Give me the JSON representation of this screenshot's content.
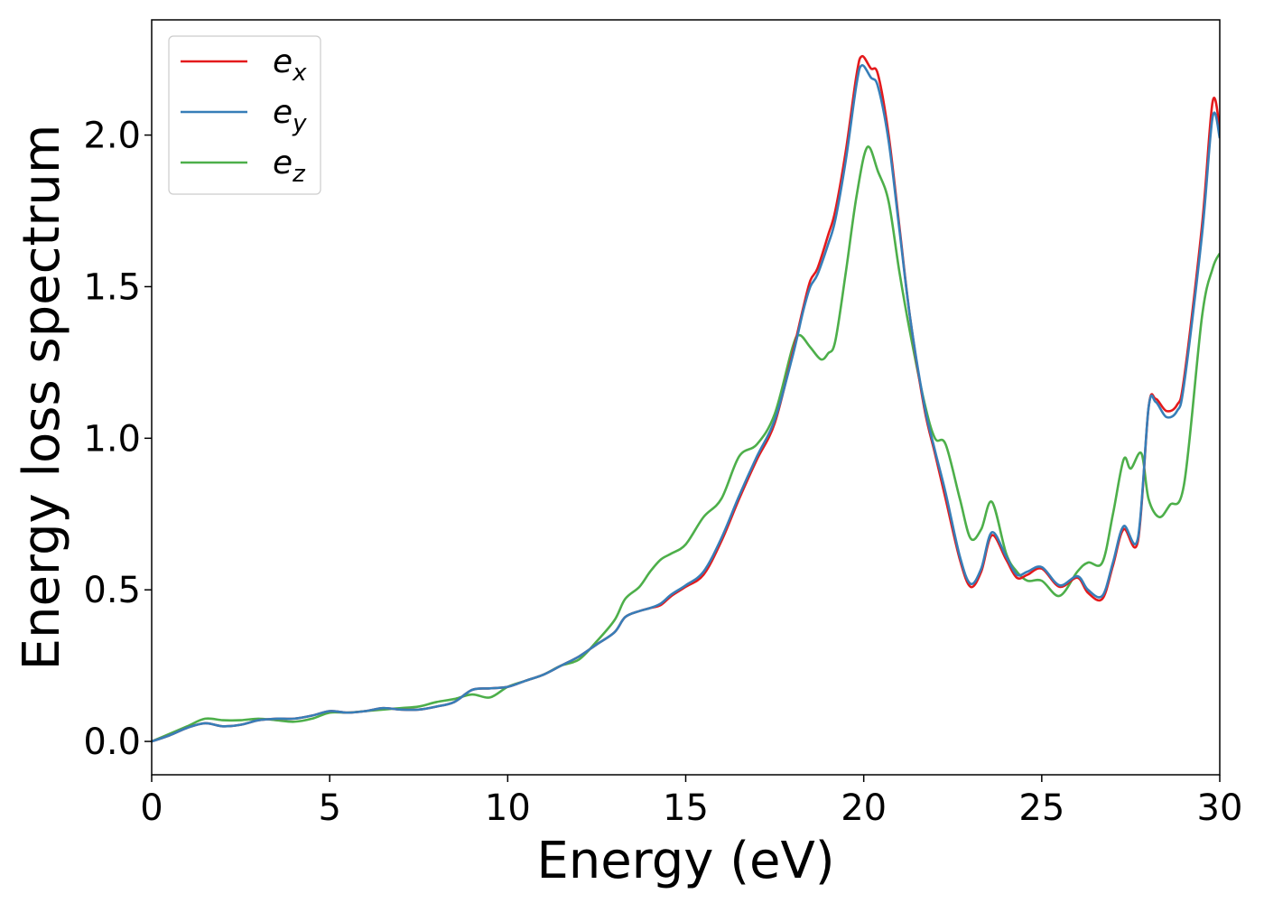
{
  "chart_data": {
    "type": "line",
    "title": "",
    "xlabel": "Energy (eV)",
    "ylabel": "Energy loss spectrum",
    "xlim": [
      0,
      30
    ],
    "ylim": [
      -0.11,
      2.38
    ],
    "xticks": [
      0,
      5,
      10,
      15,
      20,
      25,
      30
    ],
    "xtick_labels": [
      "0",
      "5",
      "10",
      "15",
      "20",
      "25",
      "30"
    ],
    "yticks": [
      0.0,
      0.5,
      1.0,
      1.5,
      2.0
    ],
    "ytick_labels": [
      "0.0",
      "0.5",
      "1.0",
      "1.5",
      "2.0"
    ],
    "grid": false,
    "legend_position": "top-left",
    "colors": [
      "#e41a1c",
      "#377eb8",
      "#4daf4a"
    ],
    "series": [
      {
        "name": "e_x",
        "base": "e",
        "sub": "x",
        "points": [
          [
            0,
            0
          ],
          [
            0.5,
            0.02
          ],
          [
            1,
            0.045
          ],
          [
            1.5,
            0.06
          ],
          [
            2,
            0.05
          ],
          [
            2.5,
            0.055
          ],
          [
            3,
            0.07
          ],
          [
            3.5,
            0.075
          ],
          [
            4,
            0.075
          ],
          [
            4.5,
            0.085
          ],
          [
            5,
            0.1
          ],
          [
            5.5,
            0.095
          ],
          [
            6,
            0.1
          ],
          [
            6.5,
            0.11
          ],
          [
            7,
            0.105
          ],
          [
            7.5,
            0.105
          ],
          [
            8,
            0.115
          ],
          [
            8.5,
            0.13
          ],
          [
            9,
            0.17
          ],
          [
            9.5,
            0.175
          ],
          [
            10,
            0.18
          ],
          [
            10.5,
            0.2
          ],
          [
            11,
            0.22
          ],
          [
            11.5,
            0.25
          ],
          [
            12,
            0.28
          ],
          [
            12.5,
            0.32
          ],
          [
            13,
            0.36
          ],
          [
            13.3,
            0.41
          ],
          [
            13.7,
            0.43
          ],
          [
            14,
            0.44
          ],
          [
            14.3,
            0.45
          ],
          [
            14.6,
            0.48
          ],
          [
            15,
            0.51
          ],
          [
            15.5,
            0.55
          ],
          [
            16,
            0.66
          ],
          [
            16.5,
            0.8
          ],
          [
            17,
            0.93
          ],
          [
            17.5,
            1.05
          ],
          [
            18,
            1.28
          ],
          [
            18.3,
            1.43
          ],
          [
            18.5,
            1.52
          ],
          [
            18.7,
            1.56
          ],
          [
            19,
            1.67
          ],
          [
            19.2,
            1.75
          ],
          [
            19.5,
            1.95
          ],
          [
            19.8,
            2.2
          ],
          [
            19.95,
            2.26
          ],
          [
            20.2,
            2.22
          ],
          [
            20.4,
            2.2
          ],
          [
            20.7,
            2.0
          ],
          [
            21,
            1.7
          ],
          [
            21.3,
            1.4
          ],
          [
            21.7,
            1.1
          ],
          [
            22,
            0.95
          ],
          [
            22.3,
            0.8
          ],
          [
            22.7,
            0.6
          ],
          [
            23,
            0.51
          ],
          [
            23.3,
            0.56
          ],
          [
            23.6,
            0.68
          ],
          [
            24,
            0.6
          ],
          [
            24.3,
            0.54
          ],
          [
            24.6,
            0.55
          ],
          [
            25,
            0.57
          ],
          [
            25.5,
            0.51
          ],
          [
            26,
            0.54
          ],
          [
            26.3,
            0.49
          ],
          [
            26.7,
            0.47
          ],
          [
            27,
            0.58
          ],
          [
            27.3,
            0.7
          ],
          [
            27.7,
            0.66
          ],
          [
            28,
            1.1
          ],
          [
            28.2,
            1.13
          ],
          [
            28.5,
            1.09
          ],
          [
            28.8,
            1.11
          ],
          [
            29,
            1.2
          ],
          [
            29.5,
            1.7
          ],
          [
            29.8,
            2.11
          ],
          [
            30,
            2.02
          ]
        ]
      },
      {
        "name": "e_y",
        "base": "e",
        "sub": "y",
        "points": [
          [
            0,
            0
          ],
          [
            0.5,
            0.02
          ],
          [
            1,
            0.045
          ],
          [
            1.5,
            0.06
          ],
          [
            2,
            0.05
          ],
          [
            2.5,
            0.055
          ],
          [
            3,
            0.07
          ],
          [
            3.5,
            0.075
          ],
          [
            4,
            0.075
          ],
          [
            4.5,
            0.085
          ],
          [
            5,
            0.1
          ],
          [
            5.5,
            0.095
          ],
          [
            6,
            0.1
          ],
          [
            6.5,
            0.11
          ],
          [
            7,
            0.105
          ],
          [
            7.5,
            0.105
          ],
          [
            8,
            0.115
          ],
          [
            8.5,
            0.13
          ],
          [
            9,
            0.17
          ],
          [
            9.5,
            0.175
          ],
          [
            10,
            0.18
          ],
          [
            10.5,
            0.2
          ],
          [
            11,
            0.22
          ],
          [
            11.5,
            0.25
          ],
          [
            12,
            0.28
          ],
          [
            12.5,
            0.32
          ],
          [
            13,
            0.36
          ],
          [
            13.3,
            0.41
          ],
          [
            13.7,
            0.43
          ],
          [
            14,
            0.44
          ],
          [
            14.3,
            0.455
          ],
          [
            14.6,
            0.485
          ],
          [
            15,
            0.515
          ],
          [
            15.5,
            0.56
          ],
          [
            16,
            0.67
          ],
          [
            16.5,
            0.81
          ],
          [
            17,
            0.94
          ],
          [
            17.5,
            1.06
          ],
          [
            18,
            1.27
          ],
          [
            18.3,
            1.42
          ],
          [
            18.5,
            1.5
          ],
          [
            18.7,
            1.54
          ],
          [
            19,
            1.64
          ],
          [
            19.2,
            1.72
          ],
          [
            19.5,
            1.92
          ],
          [
            19.8,
            2.17
          ],
          [
            19.95,
            2.23
          ],
          [
            20.2,
            2.19
          ],
          [
            20.4,
            2.16
          ],
          [
            20.7,
            1.98
          ],
          [
            21,
            1.69
          ],
          [
            21.3,
            1.4
          ],
          [
            21.7,
            1.11
          ],
          [
            22,
            0.96
          ],
          [
            22.3,
            0.82
          ],
          [
            22.7,
            0.61
          ],
          [
            23,
            0.52
          ],
          [
            23.3,
            0.57
          ],
          [
            23.6,
            0.69
          ],
          [
            24,
            0.61
          ],
          [
            24.3,
            0.55
          ],
          [
            24.6,
            0.56
          ],
          [
            25,
            0.575
          ],
          [
            25.5,
            0.515
          ],
          [
            26,
            0.545
          ],
          [
            26.3,
            0.5
          ],
          [
            26.7,
            0.48
          ],
          [
            27,
            0.59
          ],
          [
            27.3,
            0.71
          ],
          [
            27.7,
            0.67
          ],
          [
            28,
            1.1
          ],
          [
            28.2,
            1.12
          ],
          [
            28.5,
            1.07
          ],
          [
            28.8,
            1.09
          ],
          [
            29,
            1.18
          ],
          [
            29.5,
            1.67
          ],
          [
            29.8,
            2.06
          ],
          [
            30,
            1.99
          ]
        ]
      },
      {
        "name": "e_z",
        "base": "e",
        "sub": "z",
        "points": [
          [
            0,
            0
          ],
          [
            0.5,
            0.025
          ],
          [
            1,
            0.05
          ],
          [
            1.5,
            0.075
          ],
          [
            2,
            0.07
          ],
          [
            2.5,
            0.07
          ],
          [
            3,
            0.075
          ],
          [
            3.5,
            0.07
          ],
          [
            4,
            0.065
          ],
          [
            4.5,
            0.075
          ],
          [
            5,
            0.095
          ],
          [
            5.5,
            0.095
          ],
          [
            6,
            0.1
          ],
          [
            6.5,
            0.105
          ],
          [
            7,
            0.11
          ],
          [
            7.5,
            0.115
          ],
          [
            8,
            0.13
          ],
          [
            8.5,
            0.14
          ],
          [
            9,
            0.155
          ],
          [
            9.5,
            0.145
          ],
          [
            10,
            0.18
          ],
          [
            10.5,
            0.2
          ],
          [
            11,
            0.22
          ],
          [
            11.5,
            0.25
          ],
          [
            12,
            0.27
          ],
          [
            12.5,
            0.33
          ],
          [
            13,
            0.4
          ],
          [
            13.3,
            0.47
          ],
          [
            13.7,
            0.51
          ],
          [
            14,
            0.56
          ],
          [
            14.3,
            0.6
          ],
          [
            14.6,
            0.62
          ],
          [
            15,
            0.65
          ],
          [
            15.5,
            0.74
          ],
          [
            16,
            0.8
          ],
          [
            16.5,
            0.94
          ],
          [
            17,
            0.98
          ],
          [
            17.5,
            1.08
          ],
          [
            18,
            1.3
          ],
          [
            18.2,
            1.34
          ],
          [
            18.5,
            1.3
          ],
          [
            18.8,
            1.26
          ],
          [
            19,
            1.28
          ],
          [
            19.2,
            1.32
          ],
          [
            19.5,
            1.55
          ],
          [
            19.8,
            1.8
          ],
          [
            20.1,
            1.96
          ],
          [
            20.4,
            1.88
          ],
          [
            20.7,
            1.78
          ],
          [
            21,
            1.55
          ],
          [
            21.3,
            1.35
          ],
          [
            21.7,
            1.12
          ],
          [
            22,
            1.0
          ],
          [
            22.3,
            0.98
          ],
          [
            22.7,
            0.8
          ],
          [
            23,
            0.67
          ],
          [
            23.3,
            0.7
          ],
          [
            23.6,
            0.79
          ],
          [
            24,
            0.62
          ],
          [
            24.3,
            0.56
          ],
          [
            24.6,
            0.53
          ],
          [
            25,
            0.53
          ],
          [
            25.5,
            0.48
          ],
          [
            26,
            0.56
          ],
          [
            26.3,
            0.59
          ],
          [
            26.7,
            0.59
          ],
          [
            27,
            0.75
          ],
          [
            27.3,
            0.93
          ],
          [
            27.5,
            0.9
          ],
          [
            27.8,
            0.95
          ],
          [
            28,
            0.8
          ],
          [
            28.3,
            0.74
          ],
          [
            28.6,
            0.78
          ],
          [
            29,
            0.85
          ],
          [
            29.5,
            1.4
          ],
          [
            29.8,
            1.56
          ],
          [
            30,
            1.61
          ]
        ]
      }
    ]
  }
}
